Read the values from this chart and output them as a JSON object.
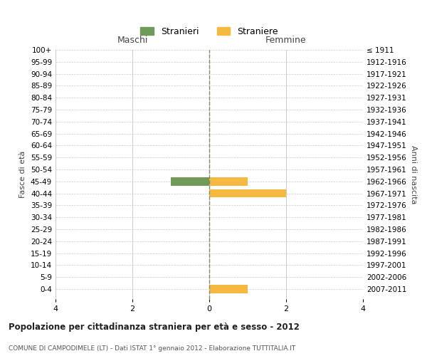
{
  "age_groups": [
    "100+",
    "95-99",
    "90-94",
    "85-89",
    "80-84",
    "75-79",
    "70-74",
    "65-69",
    "60-64",
    "55-59",
    "50-54",
    "45-49",
    "40-44",
    "35-39",
    "30-34",
    "25-29",
    "20-24",
    "15-19",
    "10-14",
    "5-9",
    "0-4"
  ],
  "birth_years": [
    "≤ 1911",
    "1912-1916",
    "1917-1921",
    "1922-1926",
    "1927-1931",
    "1932-1936",
    "1937-1941",
    "1942-1946",
    "1947-1951",
    "1952-1956",
    "1957-1961",
    "1962-1966",
    "1967-1971",
    "1972-1976",
    "1977-1981",
    "1982-1986",
    "1987-1991",
    "1992-1996",
    "1997-2001",
    "2002-2006",
    "2007-2011"
  ],
  "stranieri_males": [
    0,
    0,
    0,
    0,
    0,
    0,
    0,
    0,
    0,
    0,
    0,
    1,
    0,
    0,
    0,
    0,
    0,
    0,
    0,
    0,
    0
  ],
  "straniere_females": [
    0,
    0,
    0,
    0,
    0,
    0,
    0,
    0,
    0,
    0,
    0,
    1,
    2,
    0,
    0,
    0,
    0,
    0,
    0,
    0,
    1
  ],
  "color_males": "#6f9a5a",
  "color_females": "#f5b942",
  "xlim": 4,
  "xlabel_ticks": [
    -4,
    -2,
    0,
    2,
    4
  ],
  "xlabel_ticklabels": [
    "4",
    "2",
    "0",
    "2",
    "4"
  ],
  "title_main": "Popolazione per cittadinanza straniera per età e sesso - 2012",
  "title_sub": "COMUNE DI CAMPODIMELE (LT) - Dati ISTAT 1° gennaio 2012 - Elaborazione TUTTITALIA.IT",
  "legend_stranieri": "Stranieri",
  "legend_straniere": "Straniere",
  "label_maschi": "Maschi",
  "label_femmine": "Femmine",
  "label_fasce": "Fasce di età",
  "label_anni": "Anni di nascita",
  "bg_color": "#ffffff",
  "grid_color": "#cccccc",
  "center_line_color": "#888866"
}
